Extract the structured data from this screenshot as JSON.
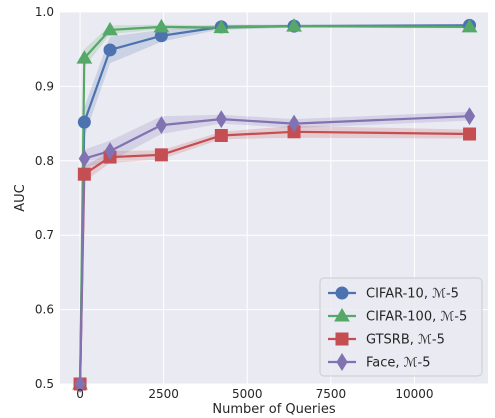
{
  "chart_data": {
    "type": "line",
    "title": "",
    "xlabel": "Number of Queries",
    "ylabel": "AUC",
    "xlim": [
      -600,
      12200
    ],
    "ylim": [
      0.5,
      1.0
    ],
    "x_ticks": [
      0,
      2500,
      5000,
      7500,
      10000
    ],
    "x_tick_labels": [
      "0",
      "2500",
      "5000",
      "7500",
      "10000"
    ],
    "y_ticks": [
      0.5,
      0.6,
      0.7,
      0.8,
      0.9,
      1.0
    ],
    "y_tick_labels": [
      "0.5",
      "0.6",
      "0.7",
      "0.8",
      "0.9",
      "1.0"
    ],
    "grid": true,
    "legend_position": "bottom-right",
    "x": [
      0,
      128,
      896,
      2432,
      4224,
      6400,
      11648
    ],
    "series": [
      {
        "name": "CIFAR-10, ℳ-5",
        "marker": "circle",
        "color": "#4c72b0",
        "values": [
          0.5,
          0.852,
          0.949,
          0.968,
          0.98,
          0.981,
          0.982
        ],
        "band": [
          0.0,
          0.02,
          0.018,
          0.008,
          0.003,
          0.002,
          0.002
        ]
      },
      {
        "name": "CIFAR-100, ℳ-5",
        "marker": "triangle",
        "color": "#55a868",
        "values": [
          0.5,
          0.938,
          0.976,
          0.98,
          0.979,
          0.981,
          0.98
        ],
        "band": [
          0.0,
          0.012,
          0.006,
          0.003,
          0.003,
          0.002,
          0.002
        ]
      },
      {
        "name": "GTSRB, ℳ-5",
        "marker": "square",
        "color": "#c44e52",
        "values": [
          0.5,
          0.782,
          0.805,
          0.808,
          0.834,
          0.839,
          0.836
        ],
        "band": [
          0.0,
          0.01,
          0.008,
          0.006,
          0.005,
          0.008,
          0.006
        ]
      },
      {
        "name": "Face, ℳ-5",
        "marker": "diamond",
        "color": "#8172b2",
        "values": [
          0.5,
          0.803,
          0.813,
          0.848,
          0.856,
          0.85,
          0.86
        ],
        "band": [
          0.0,
          0.012,
          0.014,
          0.012,
          0.006,
          0.006,
          0.006
        ]
      }
    ]
  }
}
